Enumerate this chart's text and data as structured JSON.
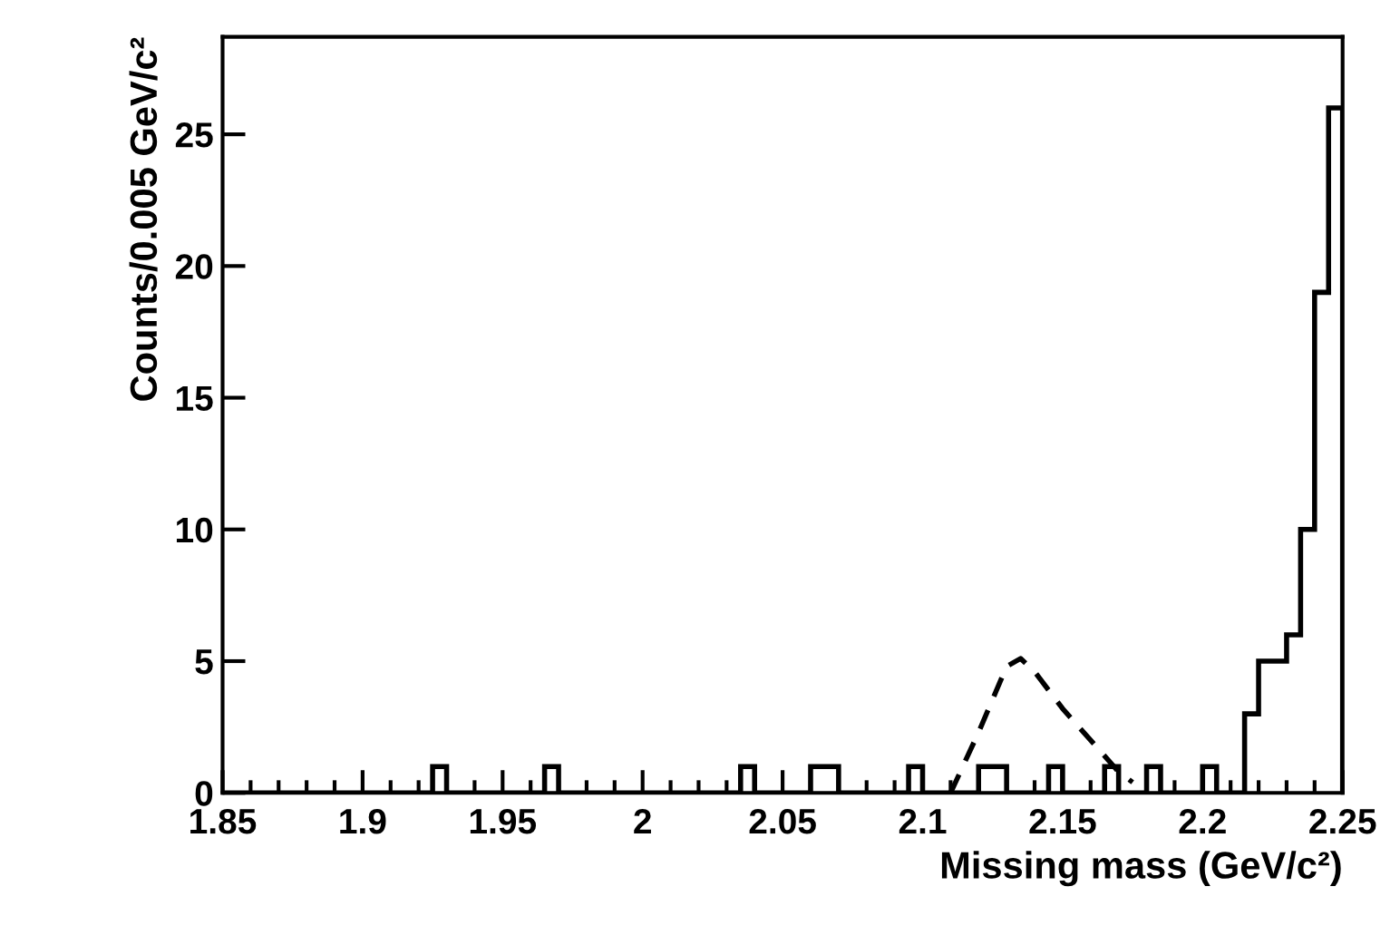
{
  "chart_data": {
    "type": "histogram",
    "xlabel": "Missing mass (GeV/c²)",
    "ylabel": "Counts/0.005 GeV/c²",
    "bins": [
      1.85,
      1.855,
      1.86,
      1.865,
      1.87,
      1.875,
      1.88,
      1.885,
      1.89,
      1.895,
      1.9,
      1.905,
      1.91,
      1.915,
      1.92,
      1.925,
      1.93,
      1.935,
      1.94,
      1.945,
      1.95,
      1.955,
      1.96,
      1.965,
      1.97,
      1.975,
      1.98,
      1.985,
      1.99,
      1.995,
      2.0,
      2.005,
      2.01,
      2.015,
      2.02,
      2.025,
      2.03,
      2.035,
      2.04,
      2.045,
      2.05,
      2.055,
      2.06,
      2.065,
      2.07,
      2.075,
      2.08,
      2.085,
      2.09,
      2.095,
      2.1,
      2.105,
      2.11,
      2.115,
      2.12,
      2.125,
      2.13,
      2.135,
      2.14,
      2.145,
      2.15,
      2.155,
      2.16,
      2.165,
      2.17,
      2.175,
      2.18,
      2.185,
      2.19,
      2.195,
      2.2,
      2.205,
      2.21,
      2.215,
      2.22,
      2.225,
      2.23,
      2.235,
      2.24,
      2.245,
      2.25
    ],
    "series": [
      {
        "color": "#000000",
        "values": [
          0,
          0,
          0,
          0,
          0,
          0,
          0,
          0,
          0,
          0,
          0,
          0,
          0,
          0,
          0,
          1,
          0,
          0,
          0,
          0,
          0,
          0,
          0,
          1,
          0,
          0,
          0,
          0,
          0,
          0,
          0,
          0,
          0,
          0,
          0,
          0,
          0,
          1,
          0,
          0,
          0,
          0,
          1,
          1,
          0,
          0,
          0,
          0,
          0,
          1,
          0,
          0,
          0,
          0,
          1,
          1,
          0,
          0,
          0,
          1,
          0,
          0,
          0,
          1,
          0,
          0,
          1,
          0,
          0,
          0,
          1,
          0,
          0,
          3,
          5,
          5,
          6,
          10,
          19,
          26
        ]
      },
      {
        "type": "line",
        "color": "#000000",
        "line_style": "dashed",
        "x": [
          2.11,
          2.12,
          2.13,
          2.135,
          2.14,
          2.15,
          2.16,
          2.17,
          2.175
        ],
        "values": [
          0,
          2.3,
          4.8,
          5.1,
          4.6,
          3.2,
          2,
          0.8,
          0.4
        ]
      }
    ],
    "xlim": [
      1.85,
      2.25
    ],
    "ylim": [
      0,
      28.7
    ],
    "xticks": [
      1.85,
      1.9,
      1.95,
      2,
      2.05,
      2.1,
      2.15,
      2.2,
      2.25
    ],
    "yticks": [
      0,
      5,
      10,
      15,
      20,
      25
    ],
    "grid": false,
    "legend": false
  }
}
